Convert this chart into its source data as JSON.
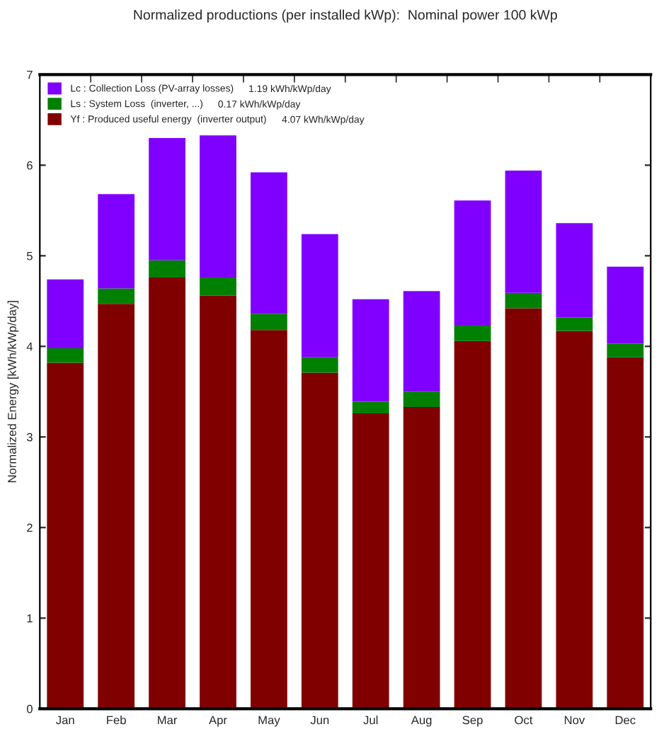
{
  "chart_data": {
    "type": "bar",
    "stacked": true,
    "title": "Normalized productions (per installed kWp):  Nominal power 100 kWp",
    "ylabel": "Normalized Energy [kWh/kWp/day]",
    "categories": [
      "Jan",
      "Feb",
      "Mar",
      "Apr",
      "May",
      "Jun",
      "Jul",
      "Aug",
      "Sep",
      "Oct",
      "Nov",
      "Dec"
    ],
    "series": [
      {
        "name": "Yf : Produced useful energy  (inverter output)",
        "color": "#800000",
        "values": [
          3.82,
          4.47,
          4.76,
          4.56,
          4.18,
          3.71,
          3.26,
          3.33,
          4.06,
          4.42,
          4.17,
          3.88
        ]
      },
      {
        "name": "Ls : System Loss  (inverter, ...)",
        "color": "#008000",
        "values": [
          0.16,
          0.17,
          0.19,
          0.2,
          0.18,
          0.17,
          0.13,
          0.17,
          0.17,
          0.17,
          0.15,
          0.15
        ]
      },
      {
        "name": "Lc : Collection Loss (PV-array losses)",
        "color": "#8000ff",
        "values": [
          0.76,
          1.04,
          1.35,
          1.57,
          1.56,
          1.36,
          1.13,
          1.11,
          1.38,
          1.35,
          1.04,
          0.85
        ]
      }
    ],
    "annotations": [
      "4.07 kWh/kWp/day",
      "0.17 kWh/kWp/day",
      "1.19 kWh/kWp/day"
    ],
    "ylim": [
      0,
      7
    ],
    "yticks": [
      0,
      1,
      2,
      3,
      4,
      5,
      6,
      7
    ],
    "legend": "top left",
    "grid": false
  }
}
